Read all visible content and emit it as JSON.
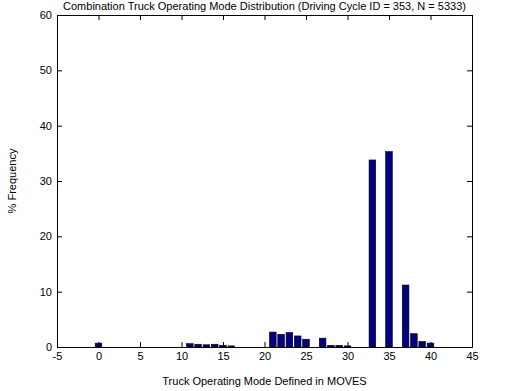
{
  "chart_data": {
    "type": "bar",
    "title": "Combination Truck Operating Mode Distribution (Driving Cycle ID = 353, N = 5333)",
    "x_label": "Truck Operating Mode Defined in MOVES",
    "y_label": "% Frequency",
    "x": [
      0,
      11,
      12,
      13,
      14,
      15,
      16,
      21,
      22,
      23,
      24,
      25,
      27,
      28,
      29,
      30,
      33,
      35,
      37,
      38,
      39,
      40
    ],
    "values": [
      0.7,
      0.6,
      0.5,
      0.4,
      0.5,
      0.3,
      0.2,
      2.7,
      2.3,
      2.6,
      2.0,
      1.4,
      1.6,
      0.3,
      0.3,
      0.2,
      33.8,
      35.3,
      11.2,
      2.4,
      1.0,
      0.7
    ],
    "color": "#000080",
    "xlim": [
      -5,
      45
    ],
    "xticks": [
      -5,
      0,
      5,
      10,
      15,
      20,
      25,
      30,
      35,
      40,
      45
    ],
    "ylim": [
      0,
      60
    ],
    "yticks": [
      0,
      10,
      20,
      30,
      40,
      50,
      60
    ],
    "grid": false
  }
}
